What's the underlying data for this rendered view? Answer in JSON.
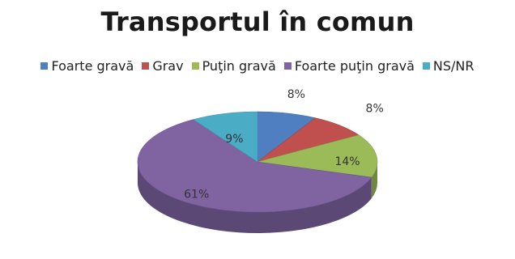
{
  "chart_data": {
    "type": "pie",
    "title": "Transportul în comun",
    "legend_position": "top",
    "three_d": true,
    "slices": [
      {
        "name": "Foarte gravă",
        "value": 8,
        "label": "8%",
        "color": "#4f7fc0"
      },
      {
        "name": "Grav",
        "value": 8,
        "label": "8%",
        "color": "#c0504d"
      },
      {
        "name": "Puţin gravă",
        "value": 14,
        "label": "14%",
        "color": "#9bbb59"
      },
      {
        "name": "Foarte puţin gravă",
        "value": 61,
        "label": "61%",
        "color": "#8064a2"
      },
      {
        "name": "NS/NR",
        "value": 9,
        "label": "9%",
        "color": "#4bacc6"
      }
    ]
  }
}
